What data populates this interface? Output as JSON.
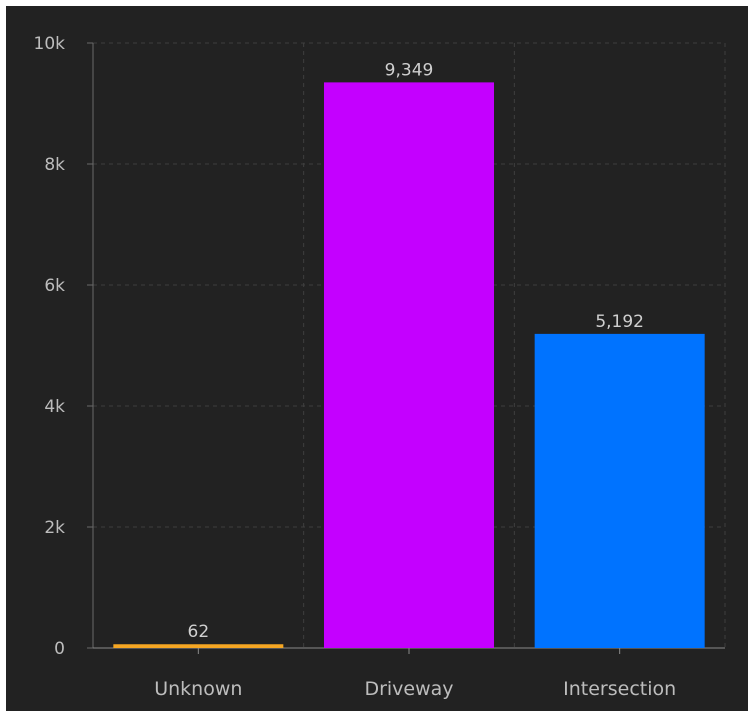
{
  "chart_data": {
    "type": "bar",
    "categories": [
      "Unknown",
      "Driveway",
      "Intersection"
    ],
    "values": [
      62,
      9349,
      5192
    ],
    "value_labels": [
      "62",
      "9,349",
      "5,192"
    ],
    "colors": [
      "#f5a623",
      "#c400ff",
      "#0073ff"
    ],
    "title": "",
    "xlabel": "",
    "ylabel": "",
    "ylim": [
      0,
      10000
    ],
    "y_ticks": [
      0,
      2000,
      4000,
      6000,
      8000,
      10000
    ],
    "y_tick_labels": [
      "0",
      "2k",
      "4k",
      "6k",
      "8k",
      "10k"
    ],
    "grid": true,
    "background": "#222222"
  }
}
